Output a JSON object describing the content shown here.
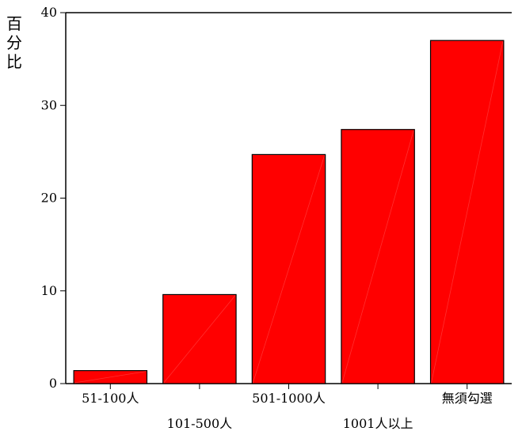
{
  "chart_data": {
    "type": "bar",
    "title": "",
    "xlabel": "",
    "ylabel": "百分比",
    "categories": [
      "51-100人",
      "101-500人",
      "501-1000人",
      "1001人以上",
      "無須勾選"
    ],
    "values": [
      1.4,
      9.6,
      24.7,
      27.4,
      37.0
    ],
    "ylim": [
      0,
      40
    ],
    "yticks": [
      "0",
      "10",
      "20",
      "30",
      "40"
    ],
    "grid": false,
    "legend": "none",
    "bar_color": "#ff0000",
    "bar_edge_color": "#000000"
  }
}
